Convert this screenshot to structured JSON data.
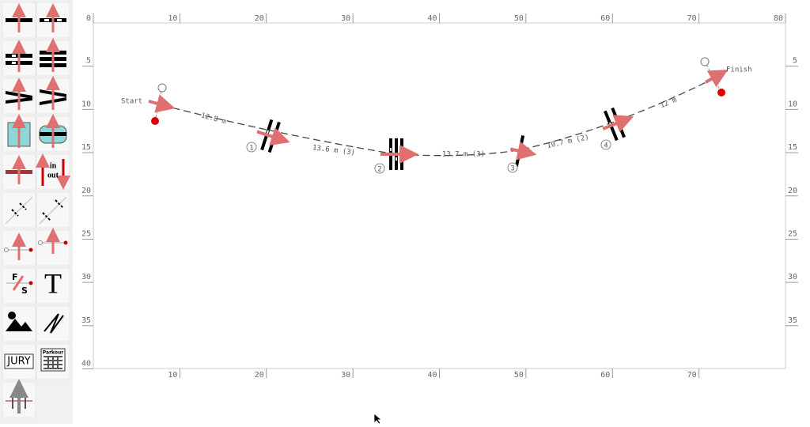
{
  "toolbar": {
    "labels": {
      "in": "in",
      "out": "out",
      "f": "F",
      "s": "S",
      "t": "T",
      "jury": "JURY",
      "parkour": "Parkour"
    }
  },
  "field": {
    "ruler_top": [
      0,
      10,
      20,
      30,
      40,
      50,
      60,
      70,
      80
    ],
    "ruler_bottom": [
      10,
      20,
      30,
      40,
      50,
      60,
      70
    ],
    "ruler_left": [
      5,
      10,
      15,
      20,
      25,
      30,
      35,
      40
    ],
    "ruler_right": [
      5,
      10,
      15,
      20,
      25,
      30,
      35
    ]
  },
  "course": {
    "start": "Start",
    "finish": "Finish",
    "obstacles": [
      "1",
      "2",
      "3",
      "4"
    ],
    "distances": [
      "12.8 m",
      "13.6 m (3)",
      "13.7 m (3)",
      "10.7 m (2)",
      "12 m"
    ]
  }
}
